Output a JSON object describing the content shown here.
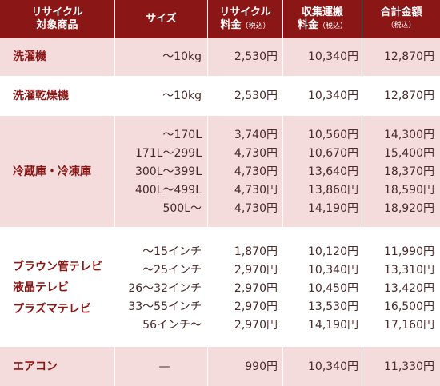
{
  "header": {
    "col1": [
      "リサイクル",
      "対象商品"
    ],
    "col2": "サイズ",
    "col3": [
      "リサイクル",
      "料金",
      "（税込）"
    ],
    "col4": [
      "収集運搬",
      "料金",
      "（税込）"
    ],
    "col5": [
      "合計金額",
      "（税込）"
    ]
  },
  "rows": [
    {
      "names": [
        "洗濯機"
      ],
      "lines": [
        [
          "～10kg",
          "2,530円",
          "10,340円",
          "12,870円"
        ]
      ]
    },
    {
      "names": [
        "洗濯乾燥機"
      ],
      "lines": [
        [
          "～10kg",
          "2,530円",
          "10,340円",
          "12,870円"
        ]
      ]
    },
    {
      "names": [
        "冷蔵庫・冷凍庫"
      ],
      "lines": [
        [
          "～170L",
          "3,740円",
          "10,560円",
          "14,300円"
        ],
        [
          "171L～299L",
          "4,730円",
          "10,670円",
          "15,400円"
        ],
        [
          "300L～399L",
          "4,730円",
          "13,640円",
          "18,370円"
        ],
        [
          "400L～499L",
          "4,730円",
          "13,860円",
          "18,590円"
        ],
        [
          "500L～",
          "4,730円",
          "14,190円",
          "18,920円"
        ]
      ]
    },
    {
      "names": [
        "ブラウン管テレビ",
        "液晶テレビ",
        "プラズマテレビ"
      ],
      "lines": [
        [
          "～15インチ",
          "1,870円",
          "10,120円",
          "11,990円"
        ],
        [
          "～25インチ",
          "2,970円",
          "10,340円",
          "13,310円"
        ],
        [
          "26～32インチ",
          "2,970円",
          "10,450円",
          "13,420円"
        ],
        [
          "33～55インチ",
          "2,970円",
          "13,530円",
          "16,500円"
        ],
        [
          "56インチ～",
          "2,970円",
          "14,190円",
          "17,160円"
        ]
      ]
    },
    {
      "names": [
        "エアコン"
      ],
      "lines": [
        [
          "—",
          "990円",
          "10,340円",
          "11,330円"
        ]
      ]
    }
  ]
}
